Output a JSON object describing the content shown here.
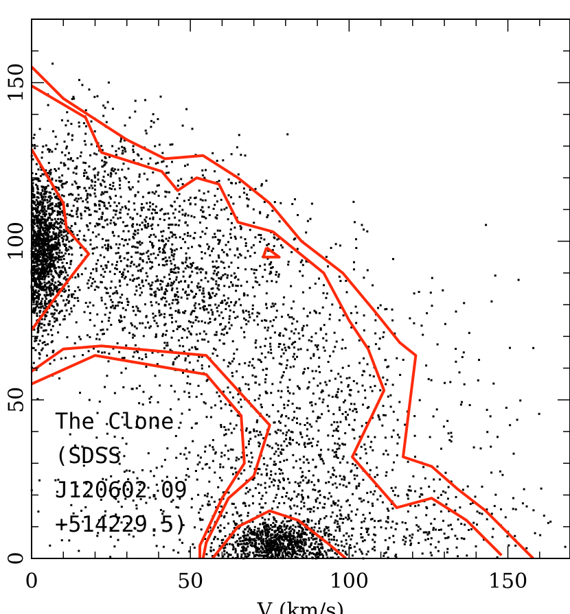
{
  "chart_data": {
    "type": "scatter",
    "title": "",
    "xlabel": "V (km/s)",
    "ylabel": "",
    "xlim": [
      0,
      170
    ],
    "ylim": [
      0,
      170
    ],
    "x_ticks": [
      0,
      50,
      100,
      150
    ],
    "y_ticks": [
      0,
      50,
      100,
      150
    ],
    "grid": false,
    "annotation_lines": [
      "The Clone",
      "(SDSS",
      "J120602.09",
      "+514229.5)"
    ],
    "point_color": "#000000",
    "contour_color": "#ff2a0a",
    "density_clumps": [
      {
        "cx": 3,
        "cy": 97,
        "sx": 4,
        "sy": 13,
        "n": 1700
      },
      {
        "cx": 78,
        "cy": 4,
        "sx": 9,
        "sy": 4,
        "n": 950
      },
      {
        "cx": 45,
        "cy": 90,
        "sx": 20,
        "sy": 18,
        "n": 1300
      },
      {
        "cx": 85,
        "cy": 45,
        "sx": 18,
        "sy": 22,
        "n": 700
      },
      {
        "cx": 60,
        "cy": 20,
        "sx": 30,
        "sy": 15,
        "n": 400
      },
      {
        "cx": 110,
        "cy": 10,
        "sx": 25,
        "sy": 8,
        "n": 350
      },
      {
        "cx": 20,
        "cy": 115,
        "sx": 10,
        "sy": 15,
        "n": 400
      },
      {
        "cx": 120,
        "cy": 45,
        "sx": 22,
        "sy": 25,
        "n": 150
      }
    ],
    "contours": [
      {
        "name": "outer",
        "points": [
          [
            0,
            155
          ],
          [
            10,
            145
          ],
          [
            30,
            132
          ],
          [
            42,
            126
          ],
          [
            54,
            127
          ],
          [
            65,
            120
          ],
          [
            75,
            112
          ],
          [
            85,
            100
          ],
          [
            98,
            90
          ],
          [
            108,
            78
          ],
          [
            116,
            68
          ],
          [
            121,
            64
          ],
          [
            117,
            32
          ],
          [
            126,
            29
          ],
          [
            134,
            22
          ],
          [
            143,
            15
          ],
          [
            150,
            8
          ],
          [
            158,
            0
          ]
        ]
      },
      {
        "name": "inner",
        "points": [
          [
            0,
            149
          ],
          [
            17,
            139
          ],
          [
            22,
            128
          ],
          [
            41,
            122
          ],
          [
            46,
            116
          ],
          [
            52,
            120
          ],
          [
            59,
            118
          ],
          [
            65,
            106
          ],
          [
            76,
            103
          ],
          [
            92,
            90
          ],
          [
            100,
            75
          ],
          [
            106,
            66
          ],
          [
            111,
            53
          ],
          [
            101,
            32
          ],
          [
            115,
            16
          ],
          [
            126,
            19
          ],
          [
            137,
            12
          ],
          [
            148,
            1
          ]
        ]
      },
      {
        "name": "left-core",
        "points": [
          [
            0,
            129
          ],
          [
            10,
            112
          ],
          [
            11,
            104
          ],
          [
            18,
            96
          ],
          [
            11,
            87
          ],
          [
            0,
            72
          ]
        ]
      },
      {
        "name": "small-loop",
        "points": [
          [
            74,
            98
          ],
          [
            73,
            95
          ],
          [
            78,
            95
          ],
          [
            74,
            98
          ]
        ]
      },
      {
        "name": "lower-outer",
        "points": [
          [
            0,
            59
          ],
          [
            10,
            66
          ],
          [
            22,
            67
          ],
          [
            55,
            64
          ],
          [
            65,
            53
          ],
          [
            75,
            42
          ],
          [
            70,
            26
          ],
          [
            62,
            19
          ],
          [
            55,
            5
          ],
          [
            54,
            0
          ]
        ]
      },
      {
        "name": "lower-inner",
        "points": [
          [
            0,
            55
          ],
          [
            20,
            64
          ],
          [
            55,
            58
          ],
          [
            66,
            45
          ],
          [
            67,
            30
          ],
          [
            60,
            19
          ],
          [
            53,
            4
          ],
          [
            53,
            0
          ]
        ]
      },
      {
        "name": "bottom-dome",
        "points": [
          [
            57,
            0
          ],
          [
            65,
            10
          ],
          [
            75,
            15
          ],
          [
            84,
            12
          ],
          [
            93,
            5
          ],
          [
            99,
            0
          ]
        ]
      }
    ]
  }
}
